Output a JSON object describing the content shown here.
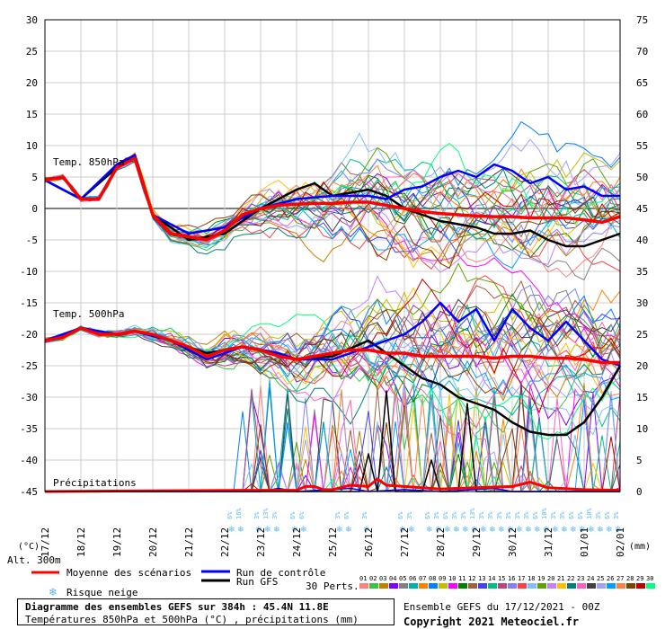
{
  "chart_data": {
    "type": "line",
    "title": "",
    "y_left_label": "(°C)",
    "y_right_label": "(mm)",
    "altitude_label": "Alt. 300m",
    "y_left_ticks": [
      30,
      25,
      20,
      15,
      10,
      5,
      0,
      -5,
      -10,
      -15,
      -20,
      -25,
      -30,
      -35,
      -40,
      -45
    ],
    "y_right_ticks": [
      75,
      70,
      65,
      60,
      55,
      50,
      45,
      40,
      35,
      30,
      25,
      20,
      15,
      10,
      5,
      0
    ],
    "y_left_range": [
      -45,
      30
    ],
    "y_right_range": [
      0,
      75
    ],
    "x_range_hours": [
      0,
      384
    ],
    "x_tick_labels": [
      "17/12",
      "18/12",
      "19/12",
      "20/12",
      "21/12",
      "22/12",
      "23/12",
      "24/12",
      "25/12",
      "26/12",
      "27/12",
      "28/12",
      "29/12",
      "30/12",
      "31/12",
      "01/01",
      "02/01"
    ],
    "grid": true,
    "section_labels": {
      "t850": "Temp. 850hPa",
      "t500": "Temp. 500hPa",
      "precip": "Précipitations"
    },
    "series": [
      {
        "name": "Moyenne des scénarios",
        "color": "#ff0000",
        "t850": [
          [
            0,
            4.5
          ],
          [
            12,
            5
          ],
          [
            24,
            1.5
          ],
          [
            36,
            1.5
          ],
          [
            48,
            6.5
          ],
          [
            60,
            8
          ],
          [
            72,
            -1
          ],
          [
            84,
            -4
          ],
          [
            96,
            -4.5
          ],
          [
            108,
            -5
          ],
          [
            120,
            -3.5
          ],
          [
            132,
            -1
          ],
          [
            144,
            0
          ],
          [
            156,
            0.5
          ],
          [
            168,
            0.7
          ],
          [
            180,
            0.8
          ],
          [
            192,
            0.8
          ],
          [
            204,
            1
          ],
          [
            216,
            1
          ],
          [
            228,
            0.5
          ],
          [
            240,
            0
          ],
          [
            252,
            -0.5
          ],
          [
            264,
            -0.8
          ],
          [
            276,
            -1
          ],
          [
            288,
            -1.2
          ],
          [
            300,
            -1.3
          ],
          [
            312,
            -1.3
          ],
          [
            324,
            -1.5
          ],
          [
            336,
            -1.5
          ],
          [
            348,
            -1.5
          ],
          [
            360,
            -1.8
          ],
          [
            372,
            -2.2
          ],
          [
            384,
            -1.3
          ]
        ],
        "t500": [
          [
            0,
            -21
          ],
          [
            12,
            -20.5
          ],
          [
            24,
            -19
          ],
          [
            36,
            -20
          ],
          [
            48,
            -20
          ],
          [
            60,
            -19.5
          ],
          [
            72,
            -20
          ],
          [
            84,
            -21
          ],
          [
            96,
            -22
          ],
          [
            108,
            -23.5
          ],
          [
            120,
            -22.5
          ],
          [
            132,
            -22
          ],
          [
            144,
            -22.5
          ],
          [
            156,
            -23.5
          ],
          [
            168,
            -24
          ],
          [
            180,
            -23.5
          ],
          [
            192,
            -23
          ],
          [
            204,
            -22.5
          ],
          [
            216,
            -22.5
          ],
          [
            228,
            -23
          ],
          [
            240,
            -23
          ],
          [
            252,
            -23.5
          ],
          [
            264,
            -23.5
          ],
          [
            276,
            -23.5
          ],
          [
            288,
            -23.5
          ],
          [
            300,
            -23.8
          ],
          [
            312,
            -23.5
          ],
          [
            324,
            -23.5
          ],
          [
            336,
            -23.8
          ],
          [
            348,
            -23.8
          ],
          [
            360,
            -24
          ],
          [
            372,
            -24.5
          ],
          [
            384,
            -24.5
          ]
        ],
        "precip_mm": [
          [
            0,
            0
          ],
          [
            132,
            0.2
          ],
          [
            168,
            0.2
          ],
          [
            174,
            0.8
          ],
          [
            180,
            0.8
          ],
          [
            186,
            0.3
          ],
          [
            192,
            0.3
          ],
          [
            204,
            1
          ],
          [
            216,
            0.8
          ],
          [
            222,
            2
          ],
          [
            228,
            1
          ],
          [
            240,
            0.8
          ],
          [
            264,
            0.4
          ],
          [
            288,
            0.6
          ],
          [
            312,
            0.8
          ],
          [
            324,
            1.5
          ],
          [
            336,
            0.6
          ],
          [
            360,
            0.3
          ],
          [
            384,
            0.2
          ]
        ]
      },
      {
        "name": "Run de contrôle",
        "color": "#0000ff",
        "t850": [
          [
            0,
            4.5
          ],
          [
            24,
            1.5
          ],
          [
            48,
            7
          ],
          [
            60,
            8.5
          ],
          [
            72,
            -1
          ],
          [
            96,
            -4
          ],
          [
            120,
            -3
          ],
          [
            144,
            0
          ],
          [
            168,
            1.5
          ],
          [
            192,
            2
          ],
          [
            216,
            2
          ],
          [
            228,
            1.5
          ],
          [
            240,
            3
          ],
          [
            252,
            3.5
          ],
          [
            264,
            5
          ],
          [
            276,
            6
          ],
          [
            288,
            5
          ],
          [
            300,
            7
          ],
          [
            312,
            6
          ],
          [
            324,
            4
          ],
          [
            336,
            5
          ],
          [
            348,
            3
          ],
          [
            360,
            3.5
          ],
          [
            372,
            2
          ],
          [
            384,
            2
          ]
        ],
        "t500": [
          [
            0,
            -21
          ],
          [
            24,
            -19
          ],
          [
            48,
            -20
          ],
          [
            60,
            -19.5
          ],
          [
            84,
            -21
          ],
          [
            108,
            -24
          ],
          [
            132,
            -22
          ],
          [
            156,
            -23
          ],
          [
            168,
            -24
          ],
          [
            192,
            -24
          ],
          [
            216,
            -22
          ],
          [
            240,
            -20
          ],
          [
            252,
            -18
          ],
          [
            264,
            -15
          ],
          [
            276,
            -18
          ],
          [
            288,
            -16
          ],
          [
            300,
            -21
          ],
          [
            312,
            -16
          ],
          [
            324,
            -19
          ],
          [
            336,
            -21
          ],
          [
            348,
            -18
          ],
          [
            360,
            -21
          ],
          [
            372,
            -24
          ],
          [
            384,
            -25
          ]
        ],
        "precip_mm": [
          [
            0,
            0
          ],
          [
            144,
            0
          ],
          [
            156,
            0.5
          ],
          [
            168,
            0
          ],
          [
            204,
            0.5
          ],
          [
            216,
            0
          ],
          [
            240,
            0.3
          ],
          [
            264,
            0
          ],
          [
            300,
            0.5
          ],
          [
            312,
            0
          ],
          [
            384,
            0
          ]
        ]
      },
      {
        "name": "Run GFS",
        "color": "#000000",
        "t850": [
          [
            0,
            4.5
          ],
          [
            24,
            1.5
          ],
          [
            48,
            6.5
          ],
          [
            60,
            8.5
          ],
          [
            72,
            -1
          ],
          [
            96,
            -5
          ],
          [
            120,
            -4
          ],
          [
            144,
            0
          ],
          [
            168,
            3
          ],
          [
            180,
            4
          ],
          [
            192,
            2
          ],
          [
            216,
            3
          ],
          [
            228,
            2
          ],
          [
            240,
            0
          ],
          [
            252,
            -1
          ],
          [
            264,
            -2
          ],
          [
            276,
            -2.5
          ],
          [
            288,
            -3
          ],
          [
            300,
            -4
          ],
          [
            312,
            -4
          ],
          [
            324,
            -3.5
          ],
          [
            336,
            -5
          ],
          [
            348,
            -6
          ],
          [
            360,
            -6
          ],
          [
            372,
            -5
          ],
          [
            384,
            -4
          ]
        ],
        "t500": [
          [
            0,
            -21
          ],
          [
            24,
            -19
          ],
          [
            48,
            -20
          ],
          [
            60,
            -19.5
          ],
          [
            84,
            -21
          ],
          [
            108,
            -23
          ],
          [
            132,
            -22
          ],
          [
            156,
            -23
          ],
          [
            168,
            -24
          ],
          [
            192,
            -23.5
          ],
          [
            216,
            -21
          ],
          [
            228,
            -23
          ],
          [
            240,
            -25
          ],
          [
            252,
            -27
          ],
          [
            264,
            -28
          ],
          [
            276,
            -30
          ],
          [
            288,
            -31
          ],
          [
            300,
            -32
          ],
          [
            312,
            -34
          ],
          [
            324,
            -35.5
          ],
          [
            336,
            -36
          ],
          [
            348,
            -36
          ],
          [
            360,
            -34
          ],
          [
            372,
            -30
          ],
          [
            384,
            -25
          ]
        ],
        "precip_mm": [
          [
            0,
            0
          ],
          [
            210,
            0
          ],
          [
            216,
            6
          ],
          [
            222,
            0
          ],
          [
            228,
            16
          ],
          [
            234,
            0
          ],
          [
            252,
            0
          ],
          [
            258,
            5
          ],
          [
            264,
            0
          ],
          [
            276,
            0
          ],
          [
            282,
            14
          ],
          [
            288,
            0
          ],
          [
            384,
            0
          ]
        ]
      }
    ],
    "ensemble_members": {
      "count_label": "30 Perts.",
      "numbers": [
        "01",
        "02",
        "03",
        "04",
        "05",
        "06",
        "07",
        "08",
        "09",
        "10",
        "11",
        "12",
        "13",
        "14",
        "15",
        "16",
        "17",
        "18",
        "19",
        "20",
        "21",
        "22",
        "23",
        "24",
        "25",
        "26",
        "27",
        "28",
        "29",
        "30"
      ],
      "colors": [
        "#ff8080",
        "#40c040",
        "#c08000",
        "#8000ff",
        "#808080",
        "#00b0b0",
        "#ff8000",
        "#0080ff",
        "#c0c000",
        "#ff00ff",
        "#008000",
        "#a06040",
        "#4040ff",
        "#00c080",
        "#c04080",
        "#8080ff",
        "#ff4040",
        "#80c0ff",
        "#60a000",
        "#c080ff",
        "#ffc000",
        "#008080",
        "#ff60c0",
        "#404040",
        "#a0a0ff",
        "#00a0ff",
        "#ff8040",
        "#804000",
        "#c00000",
        "#00ff80"
      ]
    },
    "snow_risk_percent": [
      {
        "hour": 126,
        "text": "6%"
      },
      {
        "hour": 132,
        "text": "16%"
      },
      {
        "hour": 144,
        "text": "3%"
      },
      {
        "hour": 150,
        "text": "13%"
      },
      {
        "hour": 156,
        "text": "3%"
      },
      {
        "hour": 168,
        "text": "6%"
      },
      {
        "hour": 174,
        "text": "6%"
      },
      {
        "hour": 198,
        "text": "3%"
      },
      {
        "hour": 204,
        "text": "6%"
      },
      {
        "hour": 216,
        "text": "3%"
      },
      {
        "hour": 240,
        "text": "6%"
      },
      {
        "hour": 246,
        "text": "3%"
      },
      {
        "hour": 258,
        "text": "6%"
      },
      {
        "hour": 264,
        "text": "3%"
      },
      {
        "hour": 270,
        "text": "6%"
      },
      {
        "hour": 276,
        "text": "3%"
      },
      {
        "hour": 282,
        "text": "3%"
      },
      {
        "hour": 288,
        "text": "13%"
      },
      {
        "hour": 294,
        "text": "3%"
      },
      {
        "hour": 300,
        "text": "3%"
      },
      {
        "hour": 306,
        "text": "3%"
      },
      {
        "hour": 312,
        "text": "3%"
      },
      {
        "hour": 318,
        "text": "3%"
      },
      {
        "hour": 324,
        "text": "3%"
      },
      {
        "hour": 330,
        "text": "6%"
      },
      {
        "hour": 336,
        "text": "10%"
      },
      {
        "hour": 342,
        "text": "3%"
      },
      {
        "hour": 348,
        "text": "3%"
      },
      {
        "hour": 354,
        "text": "6%"
      },
      {
        "hour": 360,
        "text": "6%"
      },
      {
        "hour": 366,
        "text": "10%"
      },
      {
        "hour": 372,
        "text": "3%"
      },
      {
        "hour": 378,
        "text": "6%"
      },
      {
        "hour": 384,
        "text": "3%"
      }
    ],
    "legend": {
      "mean": "Moyenne des scénarios",
      "control": "Run de contrôle",
      "gfs": "Run GFS",
      "snow": "Risque neige"
    },
    "footer": {
      "title": "Diagramme des ensembles GEFS sur 384h : 45.4N 11.8E",
      "subtitle": "Températures 850hPa et 500hPa (°C) , précipitations (mm)",
      "run": "Ensemble GEFS du 17/12/2021 - 00Z",
      "copyright": "Copyright 2021 Meteociel.fr"
    }
  }
}
